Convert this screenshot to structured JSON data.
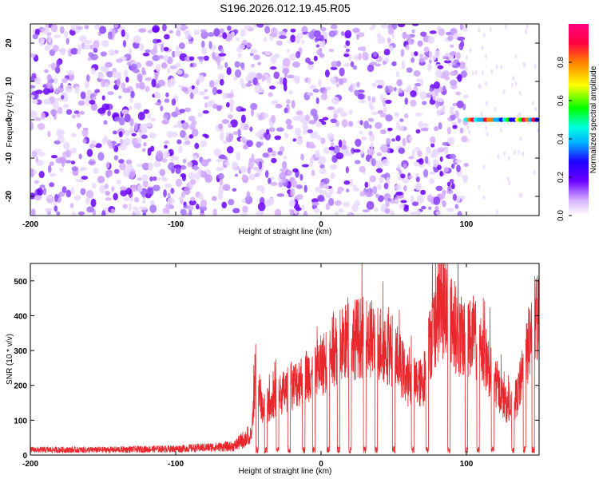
{
  "title": "S196.2026.012.19.45.R05",
  "chart_data": [
    {
      "type": "heatmap",
      "xlabel": "Height of straight line (km)",
      "ylabel": "Frequency (Hz)",
      "xlim": [
        -200,
        150
      ],
      "ylim": [
        -25,
        25
      ],
      "xticks": [
        -200,
        -100,
        0,
        100
      ],
      "yticks": [
        -20,
        -10,
        0,
        10,
        20
      ],
      "colorbar": {
        "label": "Normalized spectral amplitude",
        "range": [
          0,
          1
        ],
        "ticks": [
          0.0,
          0.2,
          0.4,
          0.6,
          0.8
        ],
        "tick_labels": [
          "0.0",
          "0.2",
          "0.4",
          "0.6",
          "0.8"
        ],
        "colormap": [
          "#ffffff",
          "#d7b2ff",
          "#6a00ff",
          "#1e00ff",
          "#00b0ff",
          "#00ffe0",
          "#00ff00",
          "#ffff00",
          "#ff8000",
          "#ff0040",
          "#ff0080"
        ]
      },
      "regions": [
        {
          "x_range": [
            -200,
            100
          ],
          "description": "broadband noise",
          "amplitude": 0.15
        },
        {
          "x_range": [
            100,
            150
          ],
          "frequency": 0,
          "description": "narrowband line",
          "amplitude": 0.9
        }
      ]
    },
    {
      "type": "line",
      "xlabel": "Height of straight line (km)",
      "ylabel": "SNR (10 * v/v)",
      "xlim": [
        -200,
        150
      ],
      "ylim": [
        0,
        550
      ],
      "xticks": [
        -200,
        -100,
        0,
        100
      ],
      "yticks": [
        0,
        100,
        200,
        300,
        400,
        500
      ],
      "color": "#e8282d",
      "series": [
        {
          "name": "SNR",
          "x": [
            -200,
            -150,
            -100,
            -60,
            -48,
            -45,
            -40,
            -30,
            -20,
            -10,
            0,
            10,
            20,
            30,
            40,
            50,
            60,
            70,
            75,
            80,
            85,
            90,
            95,
            100,
            105,
            110,
            120,
            125,
            130,
            135,
            140,
            145,
            150
          ],
          "y": [
            15,
            15,
            18,
            25,
            60,
            280,
            150,
            200,
            230,
            270,
            300,
            360,
            390,
            400,
            380,
            350,
            250,
            240,
            380,
            480,
            500,
            450,
            400,
            390,
            400,
            360,
            250,
            190,
            150,
            200,
            300,
            430,
            480
          ]
        }
      ]
    }
  ]
}
